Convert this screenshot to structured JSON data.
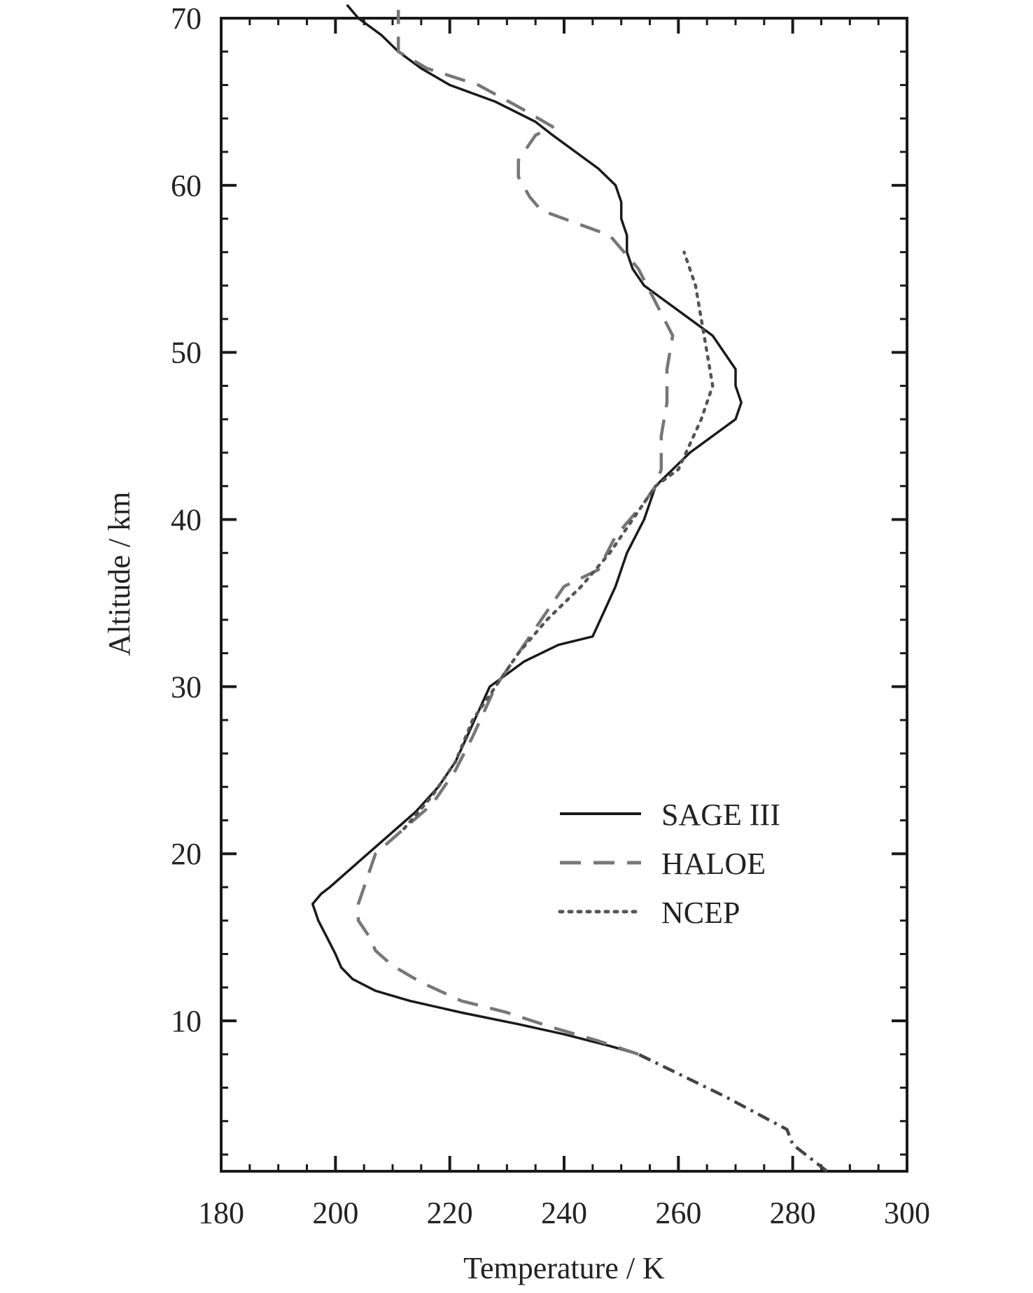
{
  "chart_data": {
    "type": "line",
    "title": "",
    "xlabel": "Temperature / K",
    "ylabel": "Altitude / km",
    "xlim": [
      180,
      300
    ],
    "ylim": [
      1,
      70
    ],
    "xticks": [
      180,
      200,
      220,
      240,
      260,
      280,
      300
    ],
    "yticks": [
      10,
      20,
      30,
      40,
      50,
      60,
      70
    ],
    "grid": false,
    "legend": "center-right",
    "series": [
      {
        "name": "SAGE III",
        "style": "solid",
        "color": "#1a1a1a",
        "points": [
          [
            253,
            8
          ],
          [
            248,
            8.5
          ],
          [
            240,
            9.2
          ],
          [
            232,
            9.8
          ],
          [
            222,
            10.5
          ],
          [
            213,
            11.2
          ],
          [
            207,
            11.8
          ],
          [
            203,
            12.5
          ],
          [
            201,
            13.2
          ],
          [
            200,
            14
          ],
          [
            198.5,
            15
          ],
          [
            197,
            16
          ],
          [
            196,
            17
          ],
          [
            197.5,
            17.6
          ],
          [
            199,
            18
          ],
          [
            204,
            19.5
          ],
          [
            209,
            21
          ],
          [
            214,
            22.5
          ],
          [
            218,
            24
          ],
          [
            221,
            25.5
          ],
          [
            223,
            27
          ],
          [
            225,
            28.5
          ],
          [
            227,
            30
          ],
          [
            233,
            31.5
          ],
          [
            239,
            32.5
          ],
          [
            245,
            33
          ],
          [
            247,
            34.5
          ],
          [
            249,
            36
          ],
          [
            251,
            38
          ],
          [
            254,
            40
          ],
          [
            256,
            42
          ],
          [
            262,
            44
          ],
          [
            266,
            45
          ],
          [
            270,
            46
          ],
          [
            271,
            47
          ],
          [
            270,
            48
          ],
          [
            270,
            49
          ],
          [
            266,
            51
          ],
          [
            258,
            53
          ],
          [
            254,
            54
          ],
          [
            252,
            55
          ],
          [
            251,
            56
          ],
          [
            251,
            57
          ],
          [
            250,
            58
          ],
          [
            250,
            59
          ],
          [
            249,
            60
          ],
          [
            246,
            61
          ],
          [
            238,
            63
          ],
          [
            235,
            63.8
          ],
          [
            228,
            65
          ],
          [
            220,
            66
          ],
          [
            215,
            67
          ],
          [
            211,
            68
          ],
          [
            208,
            69
          ],
          [
            204,
            70
          ],
          [
            202,
            70.8
          ]
        ]
      },
      {
        "name": "HALOE",
        "style": "dashed",
        "color": "#777777",
        "points": [
          [
            253,
            8
          ],
          [
            246,
            8.8
          ],
          [
            238,
            9.6
          ],
          [
            230,
            10.5
          ],
          [
            222,
            11.2
          ],
          [
            215,
            12.3
          ],
          [
            210,
            13.3
          ],
          [
            207,
            14.2
          ],
          [
            206,
            15
          ],
          [
            204,
            16
          ],
          [
            204,
            17
          ],
          [
            205,
            18
          ],
          [
            206,
            19
          ],
          [
            207,
            20
          ],
          [
            212,
            21.5
          ],
          [
            217,
            23
          ],
          [
            221,
            25
          ],
          [
            224,
            27
          ],
          [
            226,
            28.5
          ],
          [
            228,
            30
          ],
          [
            232,
            32
          ],
          [
            236,
            34
          ],
          [
            240,
            36
          ],
          [
            246,
            37
          ],
          [
            249,
            39
          ],
          [
            254,
            41
          ],
          [
            256,
            42
          ],
          [
            257,
            43
          ],
          [
            257,
            45
          ],
          [
            258,
            47
          ],
          [
            258,
            49
          ],
          [
            259,
            51
          ],
          [
            256,
            53
          ],
          [
            253,
            55
          ],
          [
            248,
            57
          ],
          [
            236,
            58.5
          ],
          [
            234,
            59.3
          ],
          [
            232,
            60.5
          ],
          [
            232,
            61.5
          ],
          [
            235,
            63
          ],
          [
            238,
            63.5
          ],
          [
            232,
            64.7
          ],
          [
            225,
            66
          ],
          [
            216,
            67
          ],
          [
            211,
            68
          ],
          [
            211,
            69
          ],
          [
            211,
            70.5
          ]
        ]
      },
      {
        "name": "NCEP",
        "style": "dotted",
        "color": "#555555",
        "points": [
          [
            212,
            21.5
          ],
          [
            217,
            23.5
          ],
          [
            221,
            25.5
          ],
          [
            224,
            28
          ],
          [
            228,
            30
          ],
          [
            232,
            32
          ],
          [
            237,
            34
          ],
          [
            243,
            36
          ],
          [
            248,
            38
          ],
          [
            252,
            40
          ],
          [
            256,
            42
          ],
          [
            260,
            43
          ],
          [
            264,
            46
          ],
          [
            266,
            48
          ],
          [
            265,
            50
          ],
          [
            264,
            52
          ],
          [
            263,
            54
          ],
          [
            261,
            56
          ]
        ]
      },
      {
        "name": "",
        "style": "dash-dot",
        "color": "#444444",
        "points": [
          [
            286,
            1
          ],
          [
            280,
            2.6
          ],
          [
            279,
            3.5
          ],
          [
            268,
            5.5
          ],
          [
            259,
            7
          ],
          [
            253,
            8
          ]
        ]
      }
    ]
  }
}
